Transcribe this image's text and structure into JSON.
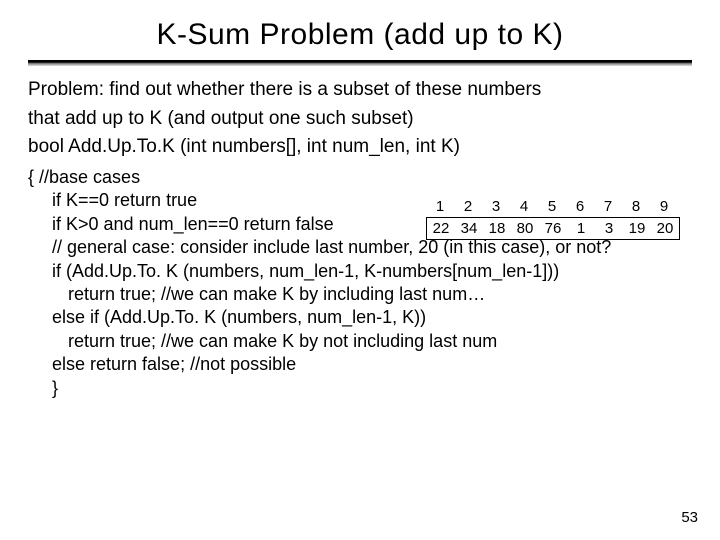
{
  "title": "K-Sum Problem (add up to K)",
  "problem_line1": "Problem: find out whether there is a subset of these numbers",
  "problem_line2": "that add up to K (and output one such subset)",
  "func_sig": "bool Add.Up.To.K (int numbers[], int num_len, int K)",
  "code": {
    "l1": "{   //base cases",
    "l2": "if K==0 return true",
    "l3": "if K>0 and num_len==0 return false",
    "l4": "// general case: consider include last number, 20 (in this case), or not?",
    "l5": "if (Add.Up.To. K (numbers, num_len-1, K-numbers[num_len-1]))",
    "l6": "return true; //we can make K by including last num…",
    "l7": "else if (Add.Up.To. K (numbers, num_len-1, K))",
    "l8": "return true; //we can make K by not including last num",
    "l9": "else return false;  //not possible",
    "l10": "}"
  },
  "table": {
    "indices": [
      "1",
      "2",
      "3",
      "4",
      "5",
      "6",
      "7",
      "8",
      "9"
    ],
    "values": [
      "22",
      "34",
      "18",
      "80",
      "76",
      "1",
      "3",
      "19",
      "20"
    ]
  },
  "page_number": "53"
}
